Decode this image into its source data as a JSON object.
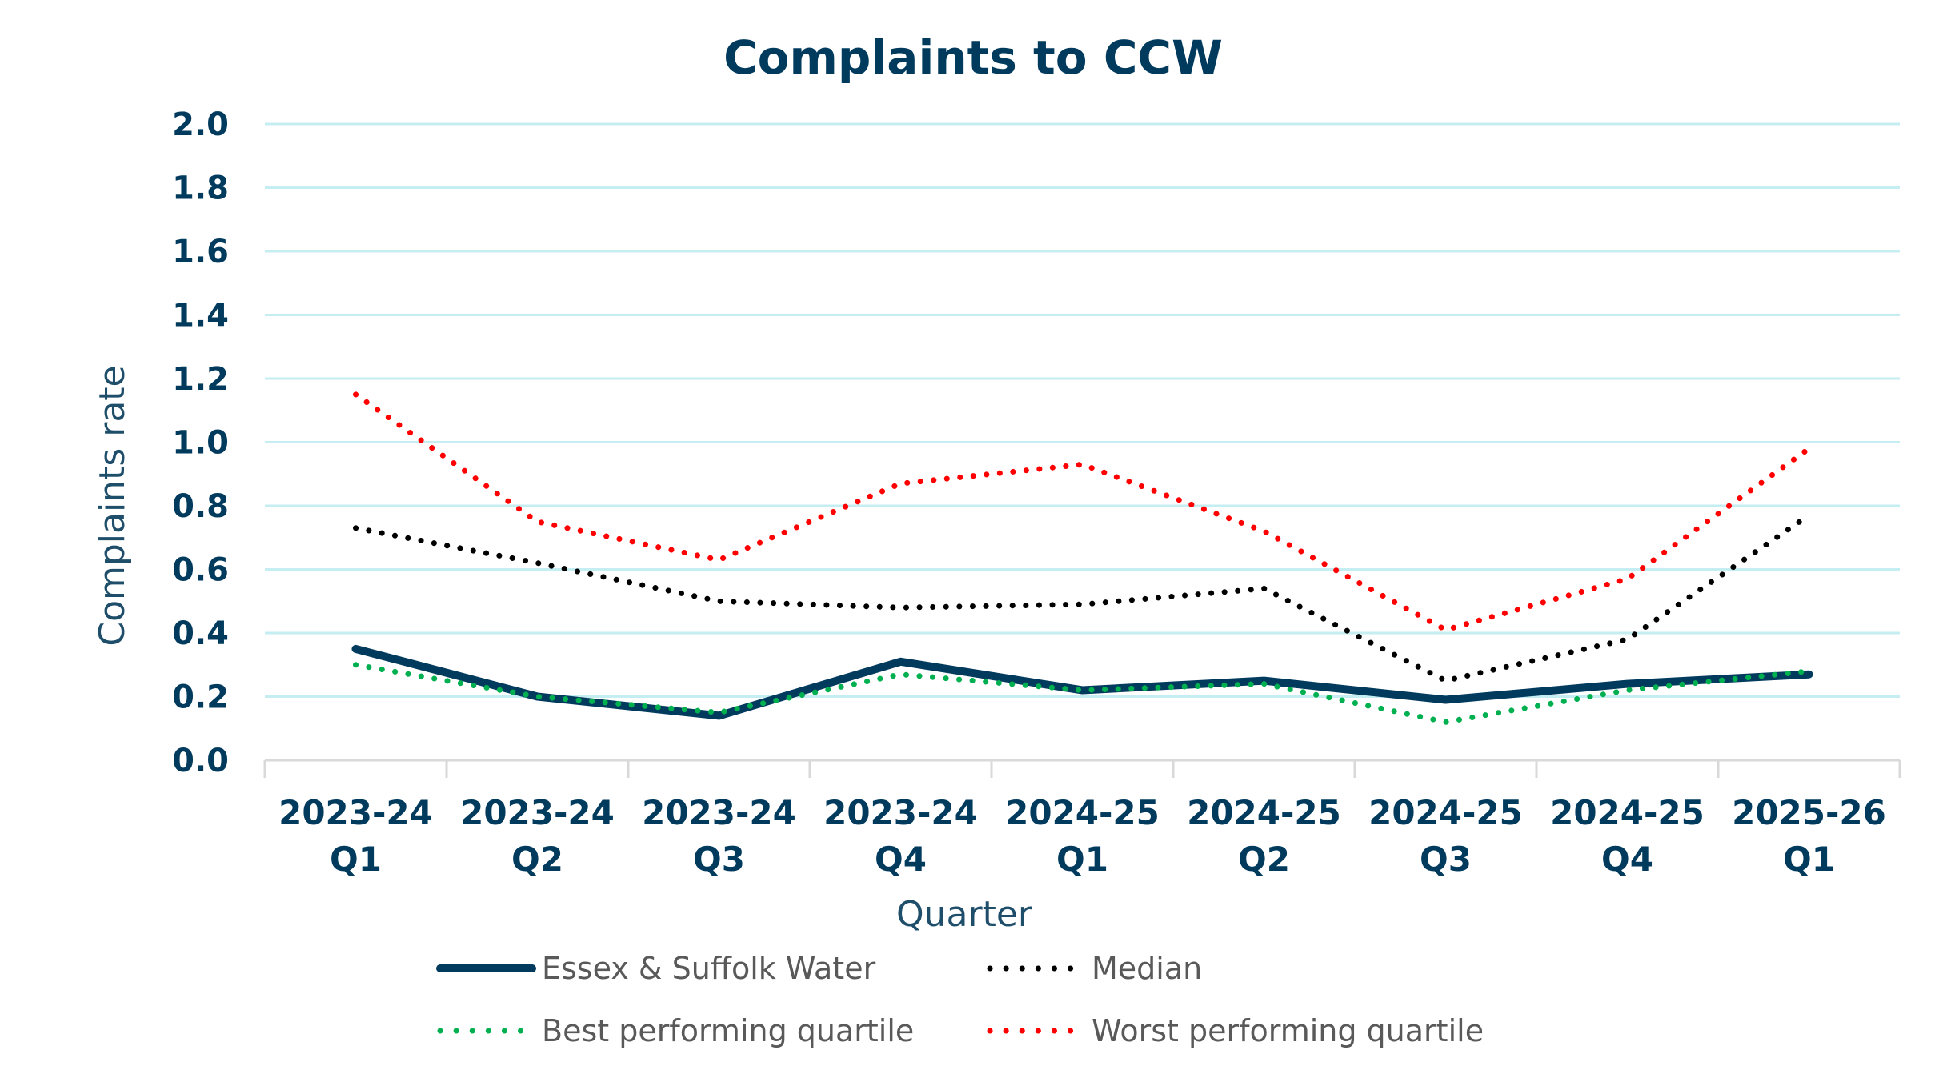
{
  "chart_data": {
    "type": "line",
    "title": "Complaints to CCW",
    "xlabel": "Quarter",
    "ylabel": "Complaints rate",
    "ylim": [
      0,
      2.0
    ],
    "yticks": [
      0.0,
      0.2,
      0.4,
      0.6,
      0.8,
      1.0,
      1.2,
      1.4,
      1.6,
      1.8,
      2.0
    ],
    "ytick_labels": [
      "0.0",
      "0.2",
      "0.4",
      "0.6",
      "0.8",
      "1.0",
      "1.2",
      "1.4",
      "1.6",
      "1.8",
      "2.0"
    ],
    "grid": true,
    "legend_position": "bottom",
    "categories": [
      [
        "2023-24",
        "Q1"
      ],
      [
        "2023-24",
        "Q2"
      ],
      [
        "2023-24",
        "Q3"
      ],
      [
        "2023-24",
        "Q4"
      ],
      [
        "2024-25",
        "Q1"
      ],
      [
        "2024-25",
        "Q2"
      ],
      [
        "2024-25",
        "Q3"
      ],
      [
        "2024-25",
        "Q4"
      ],
      [
        "2025-26",
        "Q1"
      ]
    ],
    "series": [
      {
        "name": "Essex & Suffolk Water",
        "color": "#003a5d",
        "style": "solid",
        "values": [
          0.35,
          0.2,
          0.14,
          0.31,
          0.22,
          0.25,
          0.19,
          0.24,
          0.27
        ]
      },
      {
        "name": "Median",
        "color": "#000000",
        "style": "dotted",
        "values": [
          0.73,
          0.62,
          0.5,
          0.48,
          0.49,
          0.54,
          0.25,
          0.38,
          0.77
        ]
      },
      {
        "name": "Best performing quartile",
        "color": "#00b050",
        "style": "dotted",
        "values": [
          0.3,
          0.2,
          0.15,
          0.27,
          0.22,
          0.24,
          0.12,
          0.22,
          0.28
        ]
      },
      {
        "name": "Worst performing quartile",
        "color": "#ff0000",
        "style": "dotted",
        "values": [
          1.15,
          0.75,
          0.63,
          0.87,
          0.93,
          0.72,
          0.41,
          0.57,
          0.98
        ]
      }
    ],
    "gridline_color": "#c5eef2",
    "axis_color": "#d9d9d9"
  }
}
